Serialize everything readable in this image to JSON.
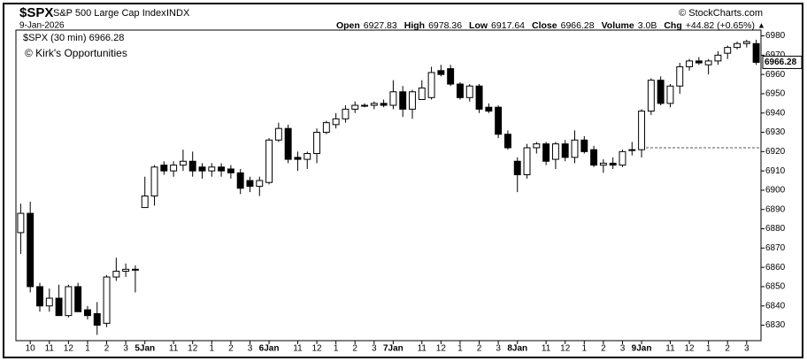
{
  "chart_data": {
    "type": "candlestick",
    "symbol": "$SPX",
    "name": "S&P 500 Large Cap Index",
    "exchange": "INDX",
    "source": "© StockCharts.com",
    "date": "9-Jan-2026",
    "stats": [
      {
        "label": "Open",
        "value": "6927.83"
      },
      {
        "label": "High",
        "value": "6978.36"
      },
      {
        "label": "Low",
        "value": "6917.64"
      },
      {
        "label": "Close",
        "value": "6966.28"
      },
      {
        "label": "Volume",
        "value": "3.0B"
      },
      {
        "label": "Chg",
        "value": "+44.82 (+0.65%)"
      }
    ],
    "change_arrow": "▲",
    "legend": "$SPX (30 min) 6966.28",
    "annotation": "© Kirk's Opportunities",
    "last_price": 6966.28,
    "hline": 6922,
    "categories": [
      null,
      "10",
      null,
      "11",
      null,
      "12",
      null,
      "1",
      null,
      "2",
      null,
      "3",
      null,
      "5Jan",
      null,
      null,
      "11",
      null,
      "12",
      null,
      "1",
      null,
      "2",
      null,
      "3",
      null,
      "6Jan",
      null,
      null,
      "11",
      null,
      "12",
      null,
      "1",
      null,
      "2",
      null,
      "3",
      null,
      "7Jan",
      null,
      null,
      "11",
      null,
      "12",
      null,
      "1",
      null,
      "2",
      null,
      "3",
      null,
      "8Jan",
      null,
      null,
      "11",
      null,
      "12",
      null,
      "1",
      null,
      "2",
      null,
      "3",
      null,
      "9Jan",
      null,
      null,
      "11",
      null,
      "12",
      null,
      "1",
      null,
      "2",
      null,
      "3",
      null
    ],
    "open": [
      6878,
      6888,
      6850,
      6840,
      6844,
      6835,
      6850,
      6838,
      6836,
      6831,
      6855,
      6858,
      6859,
      6891,
      6897,
      6913,
      6910,
      6913,
      6915,
      6912,
      6910,
      6912,
      6911,
      6909,
      6905,
      6902,
      6904,
      6926,
      6932,
      6917,
      6916,
      6919,
      6930,
      6934,
      6937,
      6942,
      6944,
      6944,
      6945,
      6944,
      6951,
      6942,
      6947,
      6948,
      6962,
      6963,
      6955,
      6948,
      6954,
      6943,
      6943,
      6929,
      6915,
      6908,
      6922,
      6924,
      6916,
      6924,
      6917,
      6926,
      6921,
      6913,
      6914,
      6913,
      6921,
      6921,
      6941,
      6957,
      6945,
      6954,
      6964,
      6967,
      6965,
      6967,
      6971,
      6974,
      6976,
      6976
    ],
    "high": [
      6893,
      6894,
      6852,
      6849,
      6851,
      6851,
      6852,
      6840,
      6842,
      6856,
      6865,
      6862,
      6861,
      6907,
      6913,
      6915,
      6915,
      6921,
      6920,
      6914,
      6914,
      6914,
      6913,
      6911,
      6907,
      6907,
      6927,
      6935,
      6934,
      6920,
      6920,
      6932,
      6936,
      6940,
      6944,
      6946,
      6945,
      6946,
      6947,
      6957,
      6954,
      6952,
      6957,
      6964,
      6965,
      6965,
      6956,
      6955,
      6955,
      6945,
      6944,
      6931,
      6917,
      6924,
      6925,
      6925,
      6925,
      6926,
      6931,
      6928,
      6923,
      6916,
      6917,
      6921,
      6925,
      6942,
      6958,
      6959,
      6955,
      6966,
      6968,
      6969,
      6968,
      6972,
      6975,
      6977,
      6978,
      6978
    ],
    "low": [
      6867,
      6847,
      6837,
      6837,
      6835,
      6834,
      6837,
      6833,
      6825,
      6829,
      6853,
      6855,
      6847,
      6891,
      6892,
      6908,
      6907,
      6910,
      6907,
      6906,
      6907,
      6907,
      6906,
      6898,
      6899,
      6897,
      6903,
      6925,
      6914,
      6910,
      6911,
      6914,
      6929,
      6932,
      6935,
      6940,
      6943,
      6942,
      6943,
      6942,
      6938,
      6937,
      6947,
      6947,
      6959,
      6954,
      6947,
      6946,
      6940,
      6940,
      6927,
      6921,
      6899,
      6906,
      6919,
      6913,
      6911,
      6915,
      6914,
      6919,
      6912,
      6909,
      6911,
      6912,
      6918,
      6917,
      6939,
      6944,
      6943,
      6950,
      6962,
      6965,
      6960,
      6965,
      6968,
      6973,
      6974,
      6965
    ],
    "close": [
      6888,
      6850,
      6840,
      6844,
      6835,
      6850,
      6837,
      6835,
      6830,
      6855,
      6858,
      6859,
      6859,
      6897,
      6912,
      6910,
      6913,
      6915,
      6910,
      6910,
      6912,
      6910,
      6909,
      6901,
      6902,
      6905,
      6926,
      6932,
      6916,
      6916,
      6919,
      6930,
      6935,
      6937,
      6942,
      6944,
      6944,
      6945,
      6944,
      6951,
      6942,
      6951,
      6953,
      6961,
      6960,
      6955,
      6948,
      6954,
      6942,
      6941,
      6929,
      6922,
      6908,
      6922,
      6924,
      6915,
      6924,
      6917,
      6926,
      6920,
      6913,
      6914,
      6913,
      6920,
      6921,
      6941,
      6957,
      6945,
      6954,
      6964,
      6967,
      6966,
      6967,
      6970,
      6974,
      6976,
      6977,
      6966.28
    ],
    "up_color": "#ffffff",
    "down_color": "#000000",
    "ylim": [
      6822,
      6983
    ],
    "yticks": [
      6830,
      6840,
      6850,
      6860,
      6870,
      6880,
      6890,
      6900,
      6910,
      6920,
      6930,
      6940,
      6950,
      6960,
      6970,
      6980
    ]
  }
}
